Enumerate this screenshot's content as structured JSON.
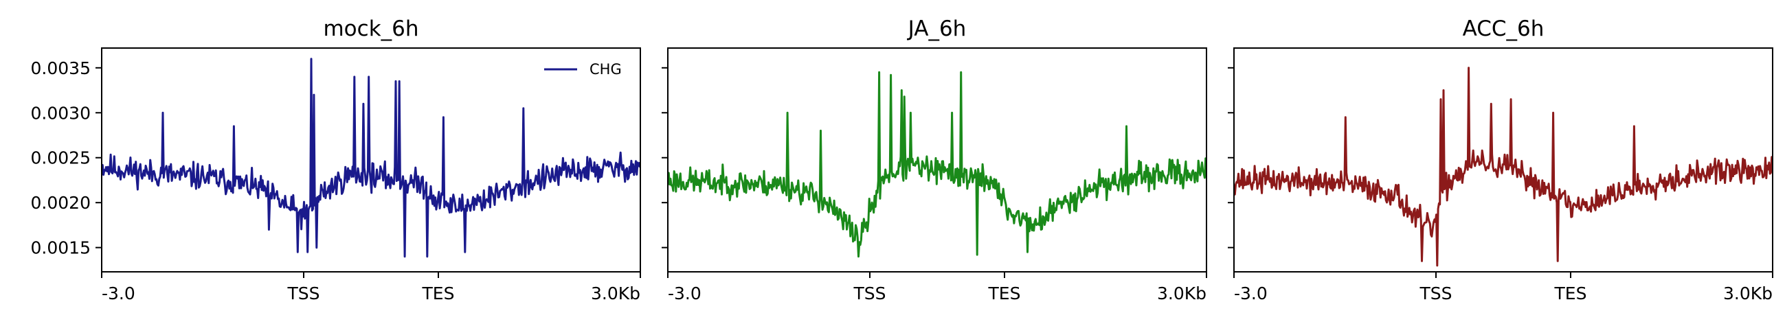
{
  "chart_data": [
    {
      "type": "line",
      "title": "mock_6h",
      "xlabel": "",
      "ylabel": "",
      "ylim": [
        0.00123,
        0.00372
      ],
      "xlim": [
        0,
        600
      ],
      "yticks": [
        0.0015,
        0.002,
        0.0025,
        0.003,
        0.0035
      ],
      "yticklabels": [
        "0.0015",
        "0.0020",
        "0.0025",
        "0.0030",
        "0.0035"
      ],
      "xticks": [
        0,
        225,
        375,
        600
      ],
      "xticklabels": [
        "-3.0",
        "TSS",
        "TES",
        "3.0Kb"
      ],
      "legend": {
        "position": "top-right",
        "entries": [
          "CHG"
        ]
      },
      "series": [
        {
          "name": "CHG",
          "color": "#1a1a8c",
          "seed": 11,
          "x_start": 0,
          "x_end": 600,
          "n_points": 600,
          "profile_x": [
            0,
            60,
            120,
            180,
            200,
            225,
            245,
            275,
            300,
            330,
            360,
            375,
            395,
            430,
            470,
            520,
            600
          ],
          "profile_y": [
            0.0024,
            0.00232,
            0.00228,
            0.00215,
            0.002,
            0.00185,
            0.0021,
            0.0023,
            0.0023,
            0.00225,
            0.0022,
            0.002,
            0.00195,
            0.00205,
            0.0022,
            0.00235,
            0.0024
          ],
          "noise": 0.00022,
          "peaks": [
            [
              233,
              0.0036
            ],
            [
              236,
              0.0032
            ],
            [
              281,
              0.0034
            ],
            [
              297,
              0.0034
            ],
            [
              327,
              0.00335
            ],
            [
              331,
              0.00335
            ],
            [
              291,
              0.0031
            ],
            [
              380,
              0.00295
            ],
            [
              469,
              0.00305
            ],
            [
              68,
              0.003
            ],
            [
              147,
              0.00285
            ],
            [
              186,
              0.0017
            ],
            [
              229,
              0.00145
            ],
            [
              337,
              0.0014
            ],
            [
              362,
              0.0014
            ],
            [
              404,
              0.00145
            ],
            [
              239,
              0.0015
            ],
            [
              218,
              0.00145
            ]
          ]
        }
      ]
    },
    {
      "type": "line",
      "title": "JA_6h",
      "xlabel": "",
      "ylabel": "",
      "ylim": [
        0.00123,
        0.00372
      ],
      "xlim": [
        0,
        600
      ],
      "yticks": [
        0.0015,
        0.002,
        0.0025,
        0.003,
        0.0035
      ],
      "xticks": [
        0,
        225,
        375,
        600
      ],
      "xticklabels": [
        "-3.0",
        "TSS",
        "TES",
        "3.0Kb"
      ],
      "series": [
        {
          "color": "#1a8a1a",
          "seed": 23,
          "x_start": 0,
          "x_end": 600,
          "n_points": 600,
          "profile_x": [
            0,
            60,
            130,
            170,
            200,
            215,
            240,
            270,
            300,
            330,
            360,
            380,
            410,
            440,
            480,
            540,
            600
          ],
          "profile_y": [
            0.00225,
            0.00222,
            0.0022,
            0.00205,
            0.00175,
            0.0016,
            0.0023,
            0.0024,
            0.00235,
            0.0023,
            0.00225,
            0.0019,
            0.00175,
            0.002,
            0.0022,
            0.0023,
            0.00235
          ],
          "noise": 0.00022,
          "peaks": [
            [
              235,
              0.00345
            ],
            [
              248,
              0.00342
            ],
            [
              260,
              0.00325
            ],
            [
              263,
              0.00318
            ],
            [
              270,
              0.003
            ],
            [
              326,
              0.00345
            ],
            [
              316,
              0.003
            ],
            [
              133,
              0.003
            ],
            [
              212,
              0.0014
            ],
            [
              344,
              0.00142
            ],
            [
              400,
              0.00145
            ],
            [
              510,
              0.00285
            ],
            [
              170,
              0.0028
            ]
          ]
        }
      ]
    },
    {
      "type": "line",
      "title": "ACC_6h",
      "xlabel": "",
      "ylabel": "",
      "ylim": [
        0.00123,
        0.00372
      ],
      "xlim": [
        0,
        600
      ],
      "yticks": [
        0.0015,
        0.002,
        0.0025,
        0.003,
        0.0035
      ],
      "xticks": [
        0,
        225,
        375,
        600
      ],
      "xticklabels": [
        "-3.0",
        "TSS",
        "TES",
        "3.0Kb"
      ],
      "series": [
        {
          "color": "#8c1a1a",
          "seed": 37,
          "x_start": 0,
          "x_end": 600,
          "n_points": 600,
          "profile_x": [
            0,
            60,
            130,
            180,
            200,
            220,
            240,
            270,
            300,
            330,
            360,
            375,
            400,
            440,
            480,
            540,
            600
          ],
          "profile_y": [
            0.00225,
            0.00225,
            0.0022,
            0.0021,
            0.00185,
            0.0017,
            0.00225,
            0.00245,
            0.0024,
            0.00225,
            0.0021,
            0.00195,
            0.002,
            0.00215,
            0.00225,
            0.00235,
            0.00235
          ],
          "noise": 0.00021,
          "peaks": [
            [
              230,
              0.00315
            ],
            [
              233,
              0.00325
            ],
            [
              261,
              0.0035
            ],
            [
              286,
              0.0031
            ],
            [
              308,
              0.00315
            ],
            [
              355,
              0.003
            ],
            [
              124,
              0.00295
            ],
            [
              209,
              0.00135
            ],
            [
              226,
              0.0013
            ],
            [
              360,
              0.00135
            ],
            [
              397,
              0.0019
            ],
            [
              445,
              0.00285
            ]
          ]
        }
      ]
    }
  ]
}
